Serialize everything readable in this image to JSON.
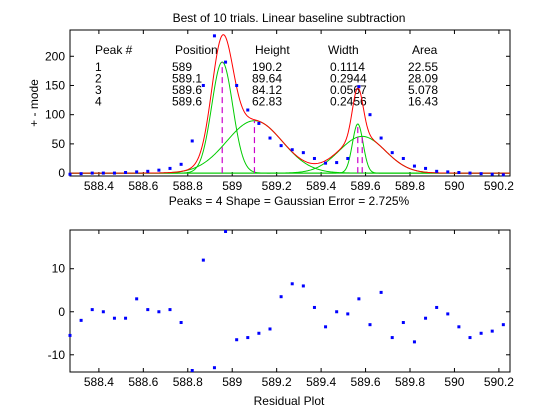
{
  "chart_data": [
    {
      "type": "line",
      "title": "Best of 10 trials.    Linear baseline subtraction",
      "ylabel": "+ - mode",
      "xlabel": "Peaks = 4      Shape = Gaussian      Error = 2.725%",
      "xlim": [
        588.27,
        590.25
      ],
      "ylim": [
        -5,
        245
      ],
      "xticks": [
        "588.4",
        "588.6",
        "588.8",
        "589",
        "589.2",
        "589.4",
        "589.6",
        "589.8",
        "590",
        "590.2"
      ],
      "yticks": [
        "0",
        "50",
        "100",
        "150",
        "200"
      ],
      "table": {
        "headers": [
          "Peak #",
          "Position",
          "Height",
          "Width",
          "Area"
        ],
        "rows": [
          [
            "1",
            "589",
            "190.2",
            "0.1114",
            "22.55"
          ],
          [
            "2",
            "589.1",
            "89.64",
            "0.2944",
            "28.09"
          ],
          [
            "3",
            "589.6",
            "84.12",
            "0.0567",
            "5.078"
          ],
          [
            "4",
            "589.6",
            "62.83",
            "0.2456",
            "16.43"
          ]
        ]
      },
      "peaks": [
        {
          "position": 588.955,
          "height": 190.2,
          "width": 0.1114
        },
        {
          "position": 589.1,
          "height": 89.64,
          "width": 0.2944
        },
        {
          "position": 589.565,
          "height": 84.12,
          "width": 0.0567
        },
        {
          "position": 589.585,
          "height": 62.83,
          "width": 0.2456
        }
      ],
      "series": [
        {
          "name": "data",
          "color": "#0000ff",
          "style": "dots",
          "x": [
            588.27,
            588.32,
            588.37,
            588.42,
            588.47,
            588.52,
            588.57,
            588.62,
            588.67,
            588.72,
            588.77,
            588.82,
            588.87,
            588.92,
            588.97,
            589.02,
            589.07,
            589.12,
            589.17,
            589.22,
            589.27,
            589.32,
            589.37,
            589.42,
            589.47,
            589.52,
            589.57,
            589.62,
            589.67,
            589.72,
            589.77,
            589.82,
            589.87,
            589.92,
            589.97,
            590.02,
            590.07,
            590.12,
            590.17,
            590.22
          ],
          "y": [
            -2,
            -1,
            0,
            0,
            0,
            1,
            2,
            3,
            5,
            8,
            15,
            55,
            150,
            235,
            190,
            150,
            108,
            85,
            60,
            47,
            40,
            35,
            25,
            17,
            18,
            25,
            148,
            100,
            60,
            35,
            25,
            12,
            8,
            3,
            2,
            1,
            0,
            -1,
            -2,
            -3
          ]
        },
        {
          "name": "fit",
          "color": "#ff0000",
          "style": "line"
        },
        {
          "name": "components",
          "color": "#00cc00",
          "style": "line"
        },
        {
          "name": "peak-markers",
          "color": "#cc00cc",
          "style": "dashed"
        }
      ]
    },
    {
      "type": "scatter",
      "xlabel": "Residual Plot",
      "xlim": [
        588.27,
        590.25
      ],
      "ylim": [
        -14,
        19
      ],
      "xticks": [
        "588.4",
        "588.6",
        "588.8",
        "589",
        "589.2",
        "589.4",
        "589.6",
        "589.8",
        "590",
        "590.2"
      ],
      "yticks": [
        "-10",
        "0",
        "10"
      ],
      "series": [
        {
          "name": "residuals",
          "color": "#0000ff",
          "x": [
            588.27,
            588.32,
            588.37,
            588.42,
            588.47,
            588.52,
            588.57,
            588.62,
            588.67,
            588.72,
            588.77,
            588.82,
            588.87,
            588.92,
            588.97,
            589.02,
            589.07,
            589.12,
            589.17,
            589.22,
            589.27,
            589.32,
            589.37,
            589.42,
            589.47,
            589.52,
            589.57,
            589.62,
            589.67,
            589.72,
            589.77,
            589.82,
            589.87,
            589.92,
            589.97,
            590.02,
            590.07,
            590.12,
            590.17,
            590.22
          ],
          "y": [
            -5.5,
            -2,
            0.5,
            0,
            -1.5,
            -1.5,
            3,
            0.5,
            0,
            0.5,
            -2.5,
            -14,
            12,
            -13,
            19,
            -6.5,
            -6,
            -5,
            -4,
            3.5,
            6.5,
            6,
            1,
            -3.5,
            0,
            -0.5,
            3,
            -3,
            4.5,
            -6,
            -2.5,
            -7,
            -1.5,
            1,
            -0.5,
            -3.5,
            -6,
            -5,
            -4.5,
            -3
          ]
        }
      ]
    }
  ]
}
